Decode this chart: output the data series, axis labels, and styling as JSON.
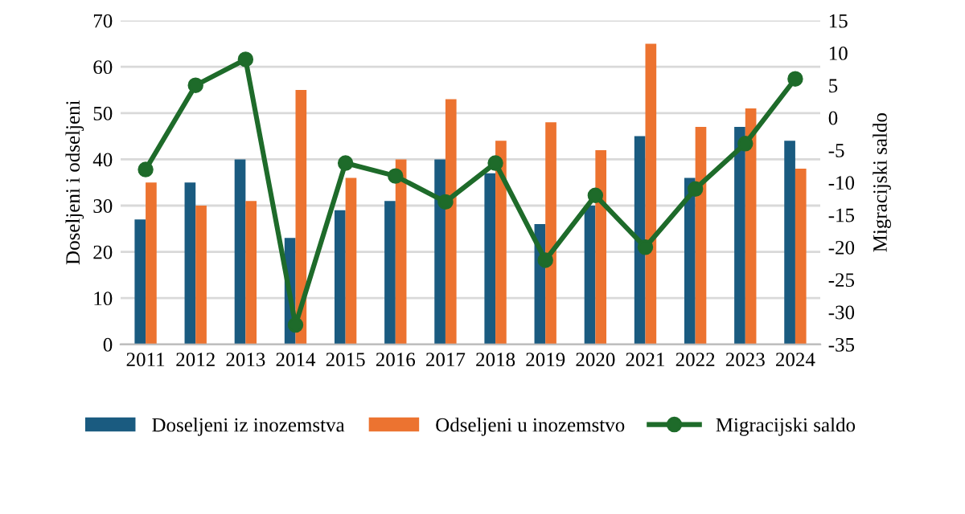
{
  "chart_data": {
    "type": "bar",
    "categories": [
      "2011",
      "2012",
      "2013",
      "2014",
      "2015",
      "2016",
      "2017",
      "2018",
      "2019",
      "2020",
      "2021",
      "2022",
      "2023",
      "2024"
    ],
    "ylabel": "Doseljeni i odseljeni",
    "y2label": "Migracijski saldo",
    "ylim": [
      0,
      70
    ],
    "yticks": [
      0,
      10,
      20,
      30,
      40,
      50,
      60,
      70
    ],
    "y2lim": [
      -35,
      15
    ],
    "y2ticks": [
      -35,
      -30,
      -25,
      -20,
      -15,
      -10,
      -5,
      0,
      5,
      10,
      15
    ],
    "grid": "y",
    "legend": "bottom",
    "series": [
      {
        "name": "Doseljeni iz inozemstva",
        "color": "#1a5b80",
        "values": [
          27,
          35,
          40,
          23,
          29,
          31,
          40,
          37,
          26,
          30,
          45,
          36,
          47,
          44
        ]
      },
      {
        "name": "Odseljeni u inozemstvo",
        "color": "#ec7330",
        "values": [
          35,
          30,
          31,
          55,
          36,
          40,
          53,
          44,
          48,
          42,
          65,
          47,
          51,
          38
        ]
      },
      {
        "name": "Migracijski saldo",
        "type": "line",
        "axis": "y2",
        "color": "#1e6b2a",
        "marker": "circle",
        "line_style": "solid",
        "values": [
          -8,
          5,
          9,
          -32,
          -7,
          -9,
          -13,
          -7,
          -22,
          -12,
          -20,
          -11,
          -4,
          6
        ]
      }
    ]
  }
}
